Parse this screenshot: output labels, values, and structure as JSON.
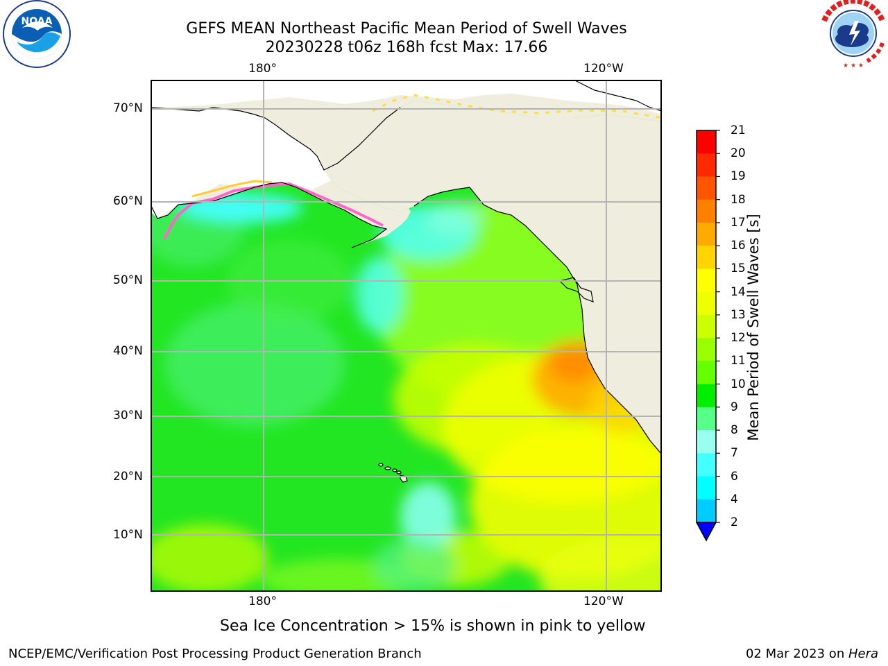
{
  "header": {
    "title_line1": "GEFS MEAN Northeast Pacific Mean Period of Swell Waves",
    "title_line2": "20230228 t06z 168h fcst   Max: 17.66"
  },
  "logos": {
    "left": {
      "name": "noaa-logo",
      "text": "NOAA",
      "ring_text": "NATIONAL OCEANIC AND ATMOSPHERIC ADMINISTRATION · U.S. DEPARTMENT OF COMMERCE"
    },
    "right": {
      "name": "nws-logo",
      "ring_text": "NATIONAL WEATHER SERVICE"
    }
  },
  "map": {
    "lon_labels_top": [
      "180°",
      "120°W"
    ],
    "lon_labels_bottom": [
      "180°",
      "120°W"
    ],
    "lat_labels": [
      "70°N",
      "60°N",
      "50°N",
      "40°N",
      "30°N",
      "20°N",
      "10°N"
    ],
    "colors": {
      "land": "#efeddd",
      "ice": "#ff66cc",
      "grid": "#b4b4b4"
    }
  },
  "colorbar": {
    "label": "Mean Period of Swell Waves [s]",
    "ticks": [
      "21",
      "20",
      "19",
      "18",
      "17",
      "16",
      "15",
      "14",
      "13",
      "12",
      "11",
      "10",
      "9",
      "8",
      "7",
      "6",
      "4",
      "2"
    ],
    "colors_top_to_bottom": [
      "#ff0000",
      "#ff2a00",
      "#ff5500",
      "#ff8000",
      "#ffaa00",
      "#ffd400",
      "#ffff00",
      "#eeff00",
      "#ccff00",
      "#99ff00",
      "#66ff00",
      "#00ee00",
      "#55ff88",
      "#99ffee",
      "#44ffff",
      "#00ffff",
      "#00ccff",
      "#0066ff"
    ],
    "under_color": "#0000ff"
  },
  "caption": "Sea Ice Concentration > 15% is shown in pink to yellow",
  "footer": {
    "left": "NCEP/EMC/Verification Post Processing Product Generation Branch",
    "right_prefix": "02 Mar 2023 on ",
    "right_host": "Hera"
  }
}
